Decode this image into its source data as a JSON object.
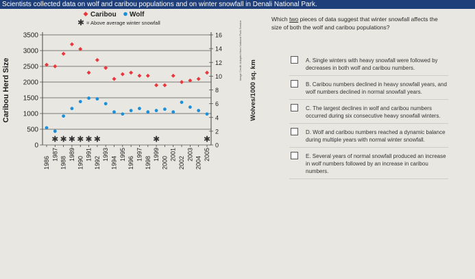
{
  "window": {
    "title": "Scientists collected data on wolf and caribou populations and on winter snowfall in Denali National Park."
  },
  "chart_data": {
    "type": "scatter",
    "legend": {
      "caribou": "Caribou",
      "wolf": "Wolf",
      "snow": "= Above average winter snowfall"
    },
    "ylabel_left": "Caribou Herd Size",
    "ylabel_right": "Wolves/1000 sq. km",
    "source_note": "Image Credit: Adapted from National Park Service",
    "years": [
      "1986",
      "1987",
      "1988",
      "1989",
      "1990",
      "1991",
      "1992",
      "1993",
      "1994",
      "1995",
      "1996",
      "1997",
      "1998",
      "1999",
      "2000",
      "2001",
      "2002",
      "2003",
      "2004",
      "2005"
    ],
    "left_axis": {
      "ticks": [
        0,
        500,
        1000,
        1500,
        2000,
        2500,
        3000,
        3500
      ],
      "ylim": [
        0,
        3500
      ]
    },
    "right_axis": {
      "ticks": [
        0,
        2,
        4,
        6,
        8,
        10,
        12,
        14,
        16
      ],
      "ylim": [
        0,
        16
      ]
    },
    "series": [
      {
        "name": "Caribou",
        "axis": "left",
        "color": "#e8383d",
        "values": [
          2550,
          2500,
          2900,
          3200,
          3050,
          2300,
          2700,
          2450,
          2100,
          2250,
          2300,
          2200,
          2200,
          1900,
          1900,
          2200,
          2000,
          2050,
          2100,
          2300
        ]
      },
      {
        "name": "Wolf",
        "axis": "right",
        "color": "#1b8fd8",
        "values": [
          2.5,
          2.0,
          4.2,
          5.3,
          6.3,
          6.8,
          6.7,
          6.0,
          4.8,
          4.5,
          5.0,
          5.3,
          4.8,
          5.0,
          5.2,
          4.8,
          6.2,
          5.5,
          5.0,
          4.5
        ]
      }
    ],
    "snow_years": [
      "1987",
      "1988",
      "1989",
      "1990",
      "1991",
      "1992",
      "1999",
      "2005"
    ]
  },
  "question": {
    "text_pre": "Which ",
    "text_underlined": "two",
    "text_post": " pieces of data suggest that winter snowfall affects the size of both the wolf and caribou populations?",
    "choices": [
      {
        "letter": "A.",
        "text": "Single winters with heavy snowfall were followed by decreases in both wolf and caribou numbers."
      },
      {
        "letter": "B.",
        "text": "Caribou numbers declined in heavy snowfall years, and wolf numbers declined in normal snowfall years."
      },
      {
        "letter": "C.",
        "text": "The largest declines in wolf and caribou numbers occurred during six consecutive heavy snowfall winters."
      },
      {
        "letter": "D.",
        "text": "Wolf and caribou numbers reached a dynamic balance during multiple years with normal winter snowfall."
      },
      {
        "letter": "E.",
        "text": "Several years of normal snowfall produced an increase in wolf numbers followed by an increase in caribou numbers."
      }
    ]
  }
}
